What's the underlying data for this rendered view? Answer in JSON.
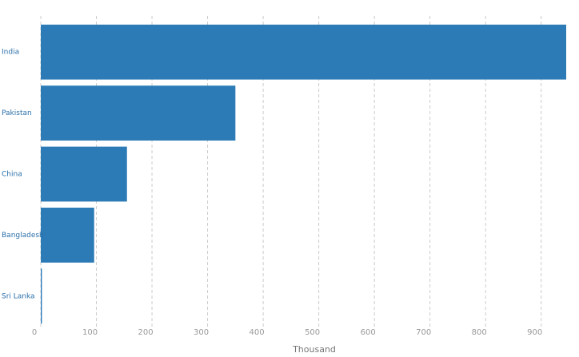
{
  "chart_data": {
    "type": "hbar",
    "x_label": "Thousand",
    "categories": [
      "India",
      "Pakistan",
      "China",
      "Bangladesh",
      "Sri Lanka"
    ],
    "values": [
      945,
      350,
      155,
      96,
      2
    ],
    "color": "#2c7bb6",
    "xlim": [
      0,
      945
    ],
    "xticks": [
      0,
      100,
      200,
      300,
      400,
      500,
      600,
      700,
      800,
      900
    ],
    "grid": true
  }
}
